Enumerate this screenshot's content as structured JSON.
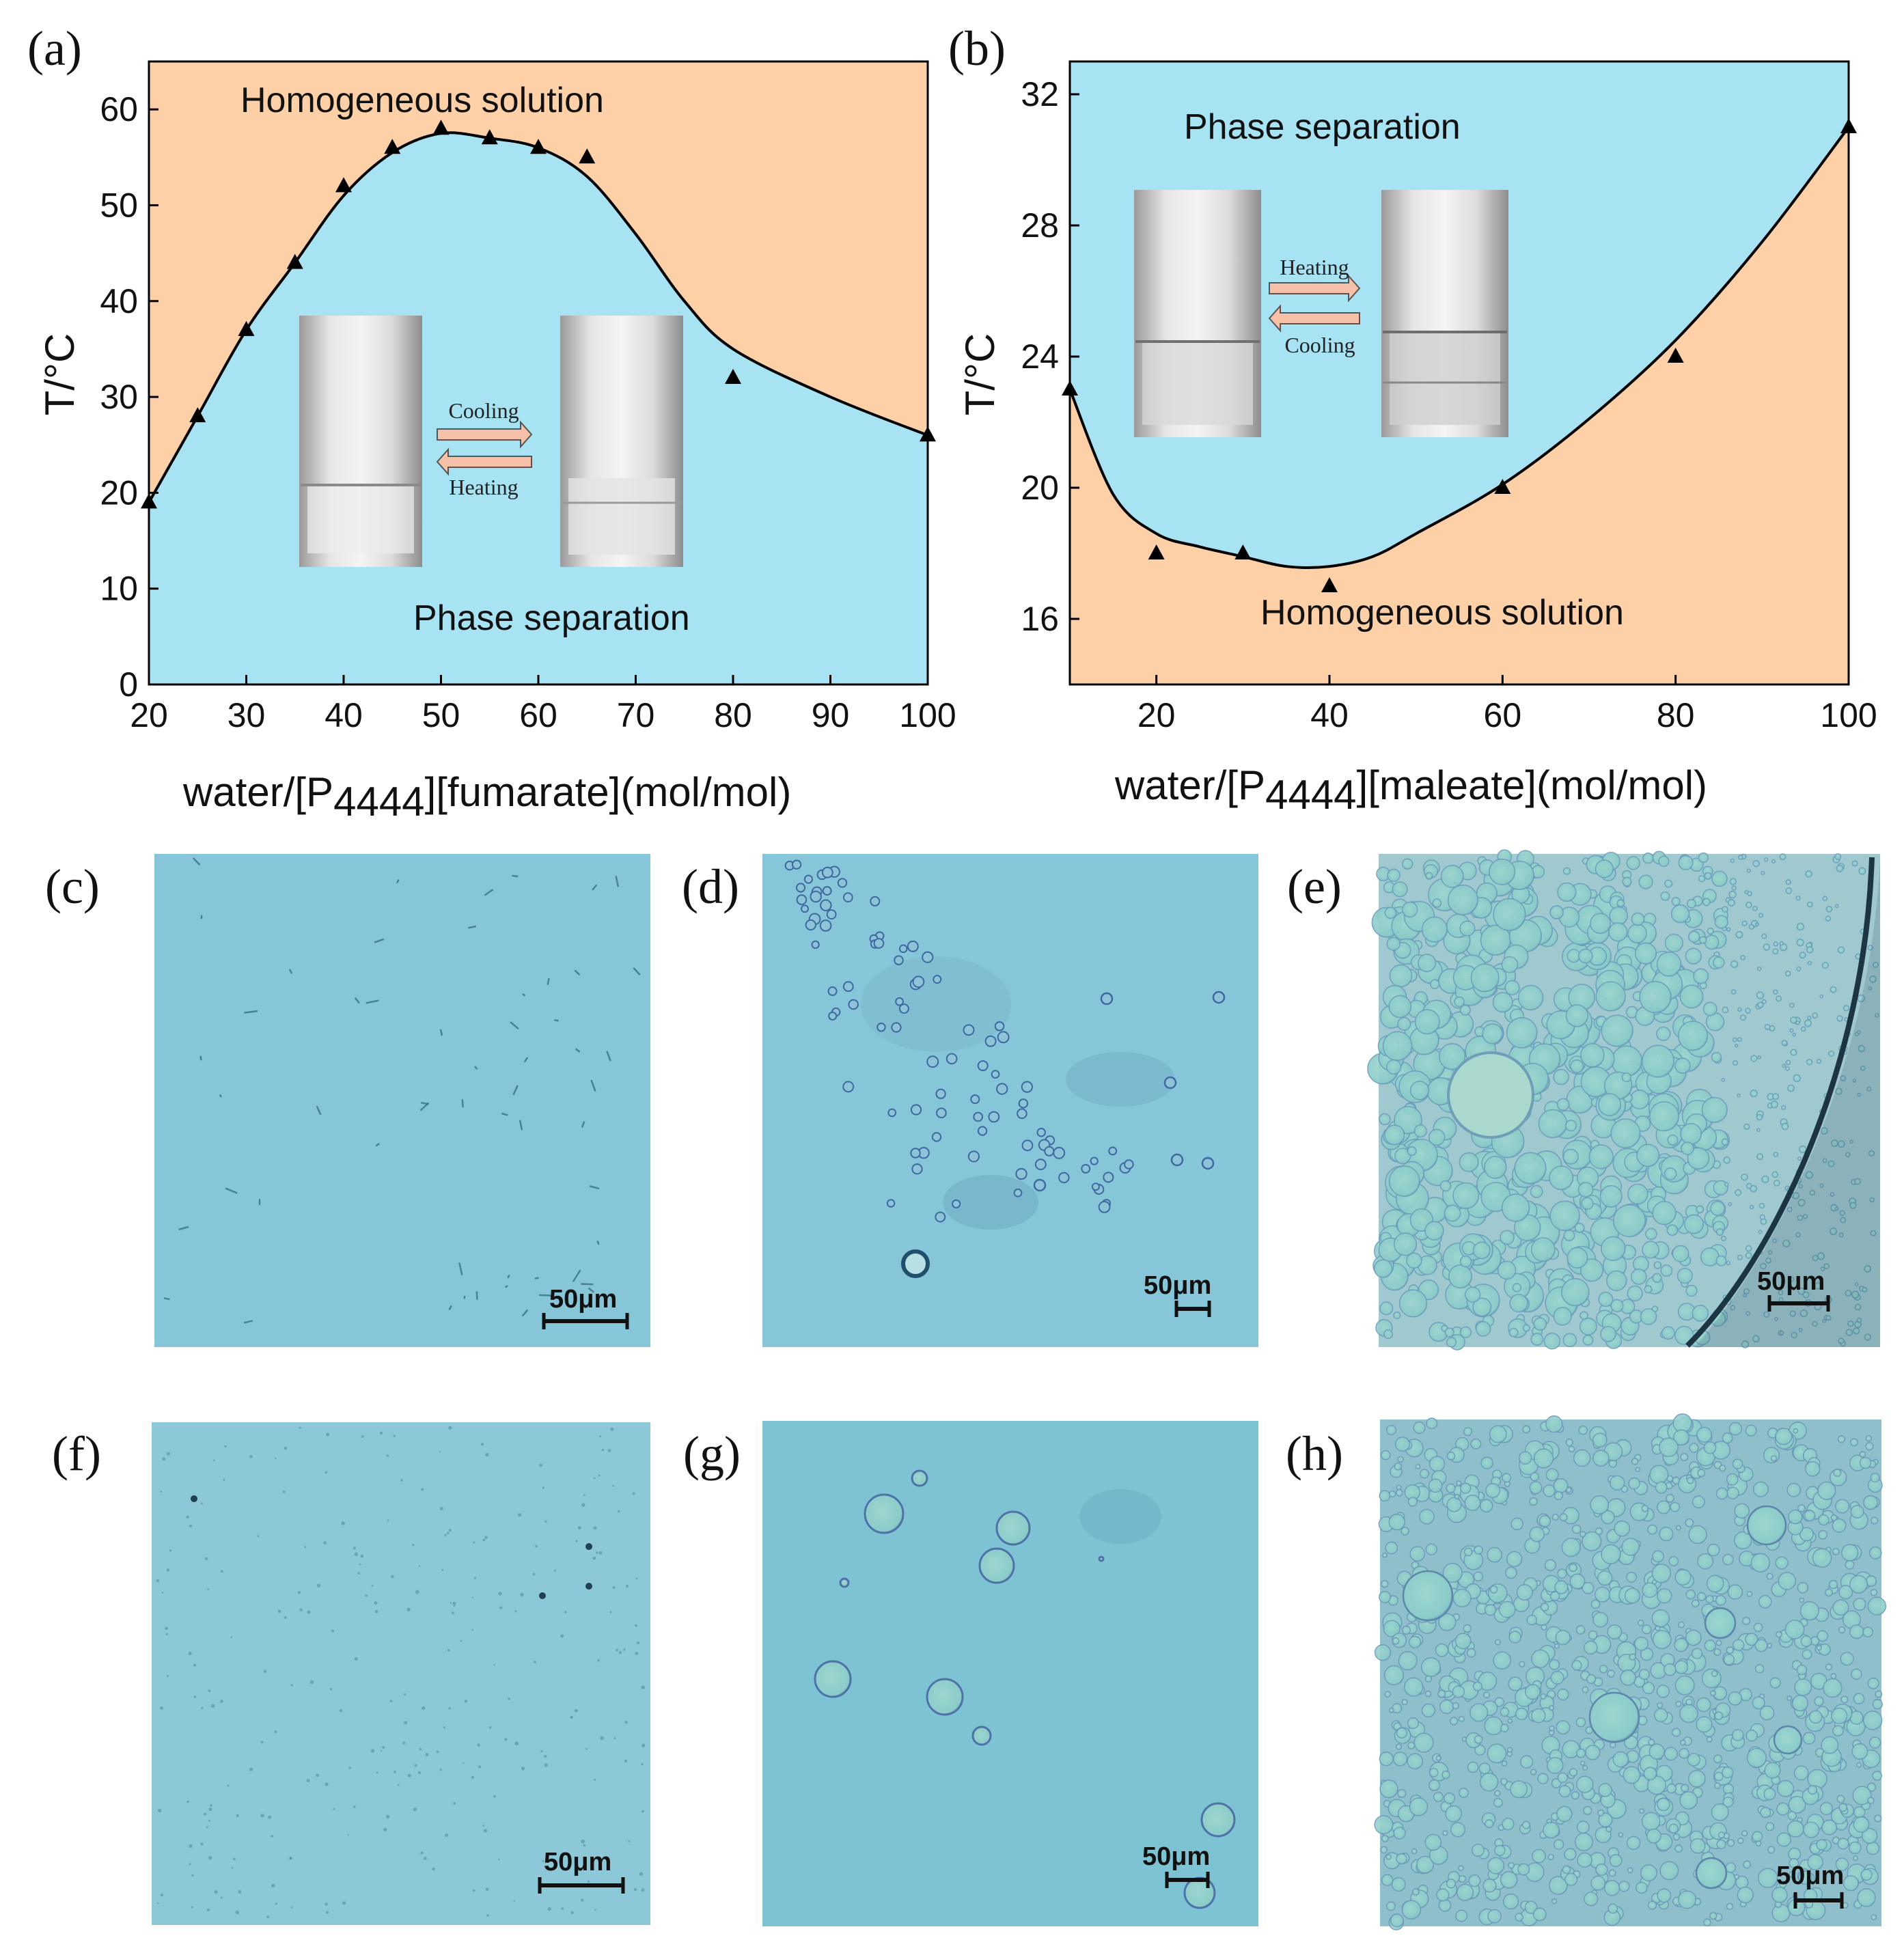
{
  "colors": {
    "homogeneous": "#fdd0a7",
    "phase_separation": "#a8e3f3",
    "curve": "#000000",
    "micrograph": "#86c6d8"
  },
  "panels": {
    "a": "(a)",
    "b": "(b)",
    "c": "(c)",
    "d": "(d)",
    "e": "(e)",
    "f": "(f)",
    "g": "(g)",
    "h": "(h)"
  },
  "chart_data": [
    {
      "panel": "(a)",
      "type": "scatter",
      "ylabel": "T/°C",
      "xlabel_parts": {
        "pre": "water/[P",
        "sub": "4444",
        "post": "][fumarate](mol/mol)"
      },
      "xlim": [
        20,
        100
      ],
      "ylim": [
        0,
        65
      ],
      "x_ticks": [
        20,
        30,
        40,
        50,
        60,
        70,
        80,
        90,
        100
      ],
      "y_ticks": [
        0,
        10,
        20,
        30,
        40,
        50,
        60
      ],
      "series": [
        {
          "marker": "triangle",
          "x": [
            20,
            25,
            30,
            35,
            40,
            45,
            50,
            55,
            60,
            65,
            80,
            100
          ],
          "y": [
            19,
            28,
            37,
            44,
            52,
            56,
            58,
            57,
            56,
            55,
            32,
            26
          ]
        }
      ],
      "boundary_curve": {
        "x": [
          20,
          25,
          30,
          35,
          40,
          45,
          50,
          55,
          60,
          65,
          70,
          75,
          80,
          90,
          100
        ],
        "y": [
          19,
          28,
          37,
          44,
          51,
          55.5,
          57.5,
          57,
          56,
          53,
          47,
          40,
          35,
          30,
          26
        ]
      },
      "region_above": "Homogeneous solution",
      "region_below": "Phase separation",
      "inset": {
        "top_arrow_label": "Cooling",
        "bottom_arrow_label": "Heating"
      }
    },
    {
      "panel": "(b)",
      "type": "scatter",
      "ylabel": "T/°C",
      "xlabel_parts": {
        "pre": "water/[P",
        "sub": "4444",
        "post": "][maleate](mol/mol)"
      },
      "xlim": [
        10,
        100
      ],
      "ylim": [
        14,
        33
      ],
      "x_ticks": [
        20,
        40,
        60,
        80,
        100
      ],
      "y_ticks": [
        16,
        20,
        24,
        28,
        32
      ],
      "series": [
        {
          "marker": "triangle",
          "x": [
            10,
            20,
            30,
            40,
            60,
            80,
            100
          ],
          "y": [
            23,
            18,
            18,
            17,
            20,
            24,
            31
          ]
        }
      ],
      "boundary_curve": {
        "x": [
          10,
          15,
          20,
          25,
          30,
          35,
          40,
          45,
          50,
          60,
          70,
          80,
          90,
          100
        ],
        "y": [
          23,
          19.8,
          18.6,
          18.2,
          17.9,
          17.6,
          17.6,
          17.9,
          18.6,
          20.1,
          22.1,
          24.5,
          27.5,
          31
        ]
      },
      "region_above": "Phase separation",
      "region_below": "Homogeneous solution",
      "inset": {
        "top_arrow_label": "Heating",
        "bottom_arrow_label": "Cooling"
      }
    }
  ],
  "micrographs": {
    "scale_bar_label": "50μm"
  }
}
